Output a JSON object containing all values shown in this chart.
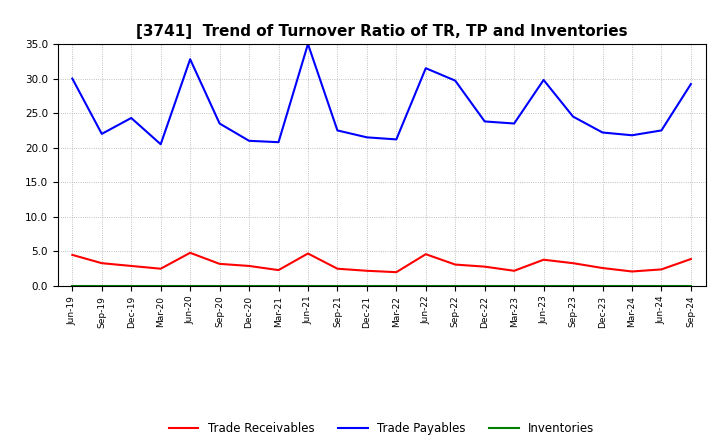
{
  "title": "[3741]  Trend of Turnover Ratio of TR, TP and Inventories",
  "x_labels": [
    "Jun-19",
    "Sep-19",
    "Dec-19",
    "Mar-20",
    "Jun-20",
    "Sep-20",
    "Dec-20",
    "Mar-21",
    "Jun-21",
    "Sep-21",
    "Dec-21",
    "Mar-22",
    "Jun-22",
    "Sep-22",
    "Dec-22",
    "Mar-23",
    "Jun-23",
    "Sep-23",
    "Dec-23",
    "Mar-24",
    "Jun-24",
    "Sep-24"
  ],
  "trade_receivables": [
    4.5,
    3.3,
    2.9,
    2.5,
    4.8,
    3.2,
    2.9,
    2.3,
    4.7,
    2.5,
    2.2,
    2.0,
    4.6,
    3.1,
    2.8,
    2.2,
    3.8,
    3.3,
    2.6,
    2.1,
    2.4,
    3.9
  ],
  "trade_payables": [
    30.0,
    22.0,
    24.3,
    20.5,
    32.8,
    23.5,
    21.0,
    20.8,
    35.0,
    22.5,
    21.5,
    21.2,
    31.5,
    29.7,
    23.8,
    23.5,
    29.8,
    24.5,
    22.2,
    21.8,
    22.5,
    29.2
  ],
  "inventories": [
    0.05,
    0.05,
    0.05,
    0.05,
    0.05,
    0.05,
    0.05,
    0.05,
    0.05,
    0.05,
    0.05,
    0.05,
    0.05,
    0.05,
    0.05,
    0.05,
    0.05,
    0.05,
    0.05,
    0.05,
    0.05,
    0.05
  ],
  "ylim": [
    0.0,
    35.0
  ],
  "yticks": [
    0.0,
    5.0,
    10.0,
    15.0,
    20.0,
    25.0,
    30.0,
    35.0
  ],
  "tr_color": "#ff0000",
  "tp_color": "#0000ff",
  "inv_color": "#008000",
  "bg_color": "#ffffff",
  "grid_color": "#999999",
  "title_fontsize": 11,
  "legend_labels": [
    "Trade Receivables",
    "Trade Payables",
    "Inventories"
  ]
}
